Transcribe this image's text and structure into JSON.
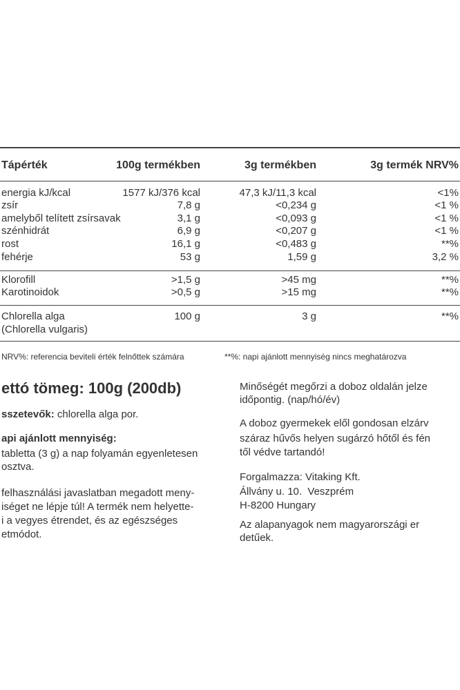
{
  "table": {
    "header": [
      "Tápérték",
      "100g termékben",
      "3g termékben",
      "3g termék NRV%"
    ],
    "groups": [
      [
        [
          "energia kJ/kcal",
          "1577 kJ/376 kcal",
          "47,3 kJ/11,3 kcal",
          "<1%"
        ],
        [
          "zsír",
          "7,8 g",
          "<0,234 g",
          "<1 %"
        ],
        [
          "amelyből telített zsírsavak",
          "3,1 g",
          "<0,093 g",
          "<1 %"
        ],
        [
          "szénhidrát",
          "6,9 g",
          "<0,207 g",
          "<1 %"
        ],
        [
          "rost",
          "16,1 g",
          "<0,483 g",
          "**%"
        ],
        [
          "fehérje",
          "53 g",
          "1,59 g",
          "3,2 %"
        ]
      ],
      [
        [
          "Klorofill",
          ">1,5 g",
          ">45 mg",
          "**%"
        ],
        [
          "Karotinoidok",
          ">0,5 g",
          ">15 mg",
          "**%"
        ]
      ],
      [
        [
          "Chlorella alga",
          "100 g",
          "3 g",
          "**%"
        ]
      ]
    ],
    "extra_line": "(Chlorella vulgaris)",
    "footnotes": [
      "NRV%: referencia beviteli érték felnőttek számára",
      "**%: napi ajánlott mennyiség nincs meghatározva"
    ]
  },
  "left": {
    "net_weight": "ettó tömeg: 100g (200db)",
    "ingredients": {
      "label": "sszetevők:",
      "text": " chlorella alga por."
    },
    "dosage": {
      "label": "api ajánlott mennyiség:",
      "lines": [
        "tabletta (3 g) a nap folyamán egyenletesen",
        "osztva."
      ]
    },
    "warning": [
      "felhasználási javaslatban megadott meny-",
      "iséget ne lépje túl! A termék nem helyette-",
      "i a vegyes étrendet, és az egészséges",
      "etmódot."
    ]
  },
  "right": {
    "paragraphs": [
      [
        "Minőségét megőrzi a doboz oldalán jelze",
        "időpontig. (nap/hó/év)"
      ],
      [
        "A doboz gyermekek elől gondosan elzárv",
        "száraz hűvős helyen sugárzó hőtől és fén",
        "től védve tartandó!"
      ],
      [
        "Forgalmazza: Vitaking Kft.",
        "Állvány u. 10.  Veszprém",
        "H-8200 Hungary"
      ],
      [
        "Az alapanyagok nem magyarországi er",
        "detűek."
      ]
    ]
  }
}
